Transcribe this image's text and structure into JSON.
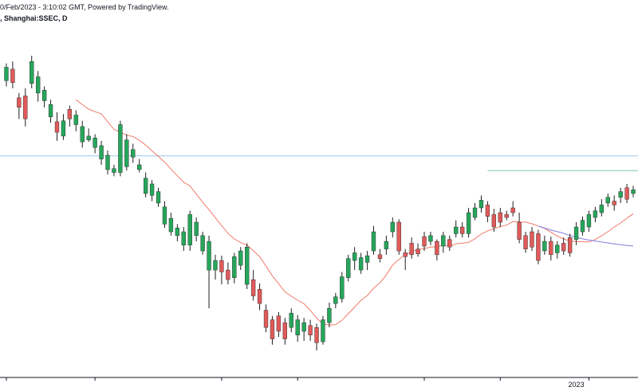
{
  "header": {
    "line1": "0/Feb/2023 - 3:10:02 GMT, Powered by TradingView.",
    "line2": ", Shanghai:SSEC, D"
  },
  "colors": {
    "up": "#26a65b",
    "down": "#e05a5a",
    "ma_short": "#f07a6a",
    "ma_long": "#7f7fe0",
    "hline_blue": "#9ec5e8",
    "hline_green": "#7cc7a0",
    "axis": "#131722"
  },
  "chart_data": {
    "type": "candlestick",
    "symbol": "Shanghai:SSEC",
    "interval": "D",
    "x_labels": [
      "2023"
    ],
    "candles": [
      {
        "o": 358,
        "c": 372,
        "h": 376,
        "l": 352
      },
      {
        "o": 370,
        "c": 356,
        "h": 378,
        "l": 350
      },
      {
        "o": 340,
        "c": 330,
        "h": 345,
        "l": 318
      },
      {
        "o": 342,
        "c": 318,
        "h": 350,
        "l": 310
      },
      {
        "o": 355,
        "c": 378,
        "h": 384,
        "l": 350
      },
      {
        "o": 345,
        "c": 362,
        "h": 368,
        "l": 336
      },
      {
        "o": 337,
        "c": 348,
        "h": 352,
        "l": 330
      },
      {
        "o": 320,
        "c": 333,
        "h": 338,
        "l": 314
      },
      {
        "o": 315,
        "c": 304,
        "h": 325,
        "l": 295
      },
      {
        "o": 300,
        "c": 316,
        "h": 323,
        "l": 296
      },
      {
        "o": 328,
        "c": 318,
        "h": 332,
        "l": 310
      },
      {
        "o": 312,
        "c": 322,
        "h": 327,
        "l": 305
      },
      {
        "o": 294,
        "c": 310,
        "h": 316,
        "l": 288
      },
      {
        "o": 296,
        "c": 300,
        "h": 308,
        "l": 294
      },
      {
        "o": 288,
        "c": 298,
        "h": 302,
        "l": 282
      },
      {
        "o": 276,
        "c": 290,
        "h": 295,
        "l": 270
      },
      {
        "o": 265,
        "c": 280,
        "h": 285,
        "l": 260
      },
      {
        "o": 262,
        "c": 266,
        "h": 270,
        "l": 258
      },
      {
        "o": 262,
        "c": 312,
        "h": 316,
        "l": 258
      },
      {
        "o": 268,
        "c": 296,
        "h": 302,
        "l": 264
      },
      {
        "o": 278,
        "c": 286,
        "h": 292,
        "l": 272
      },
      {
        "o": 265,
        "c": 270,
        "h": 276,
        "l": 262
      },
      {
        "o": 240,
        "c": 256,
        "h": 262,
        "l": 236
      },
      {
        "o": 238,
        "c": 250,
        "h": 254,
        "l": 232
      },
      {
        "o": 230,
        "c": 242,
        "h": 246,
        "l": 226
      },
      {
        "o": 208,
        "c": 226,
        "h": 232,
        "l": 204
      },
      {
        "o": 200,
        "c": 214,
        "h": 220,
        "l": 196
      },
      {
        "o": 196,
        "c": 204,
        "h": 208,
        "l": 190
      },
      {
        "o": 186,
        "c": 200,
        "h": 205,
        "l": 180
      },
      {
        "o": 186,
        "c": 218,
        "h": 222,
        "l": 180
      },
      {
        "o": 196,
        "c": 210,
        "h": 215,
        "l": 190
      },
      {
        "o": 180,
        "c": 196,
        "h": 200,
        "l": 176
      },
      {
        "o": 160,
        "c": 190,
        "h": 196,
        "l": 120
      },
      {
        "o": 160,
        "c": 170,
        "h": 176,
        "l": 150
      },
      {
        "o": 170,
        "c": 158,
        "h": 175,
        "l": 145
      },
      {
        "o": 160,
        "c": 150,
        "h": 168,
        "l": 145
      },
      {
        "o": 152,
        "c": 174,
        "h": 178,
        "l": 146
      },
      {
        "o": 165,
        "c": 180,
        "h": 184,
        "l": 160
      },
      {
        "o": 145,
        "c": 184,
        "h": 188,
        "l": 140
      },
      {
        "o": 150,
        "c": 133,
        "h": 160,
        "l": 128
      },
      {
        "o": 140,
        "c": 125,
        "h": 146,
        "l": 118
      },
      {
        "o": 118,
        "c": 100,
        "h": 124,
        "l": 95
      },
      {
        "o": 108,
        "c": 88,
        "h": 112,
        "l": 82
      },
      {
        "o": 112,
        "c": 96,
        "h": 116,
        "l": 90
      },
      {
        "o": 105,
        "c": 88,
        "h": 110,
        "l": 82
      },
      {
        "o": 100,
        "c": 115,
        "h": 120,
        "l": 95
      },
      {
        "o": 92,
        "c": 108,
        "h": 113,
        "l": 85
      },
      {
        "o": 96,
        "c": 105,
        "h": 110,
        "l": 86
      },
      {
        "o": 102,
        "c": 92,
        "h": 108,
        "l": 86
      },
      {
        "o": 100,
        "c": 84,
        "h": 104,
        "l": 76
      },
      {
        "o": 85,
        "c": 108,
        "h": 112,
        "l": 82
      },
      {
        "o": 105,
        "c": 120,
        "h": 126,
        "l": 100
      },
      {
        "o": 125,
        "c": 132,
        "h": 136,
        "l": 120
      },
      {
        "o": 130,
        "c": 153,
        "h": 158,
        "l": 126
      },
      {
        "o": 152,
        "c": 172,
        "h": 176,
        "l": 148
      },
      {
        "o": 170,
        "c": 178,
        "h": 184,
        "l": 160
      },
      {
        "o": 160,
        "c": 173,
        "h": 178,
        "l": 156
      },
      {
        "o": 168,
        "c": 175,
        "h": 180,
        "l": 160
      },
      {
        "o": 180,
        "c": 200,
        "h": 206,
        "l": 176
      },
      {
        "o": 176,
        "c": 172,
        "h": 182,
        "l": 168
      },
      {
        "o": 182,
        "c": 190,
        "h": 196,
        "l": 176
      },
      {
        "o": 200,
        "c": 210,
        "h": 215,
        "l": 194
      },
      {
        "o": 210,
        "c": 180,
        "h": 213,
        "l": 176
      },
      {
        "o": 178,
        "c": 174,
        "h": 182,
        "l": 160
      },
      {
        "o": 188,
        "c": 176,
        "h": 194,
        "l": 172
      },
      {
        "o": 182,
        "c": 177,
        "h": 188,
        "l": 174
      },
      {
        "o": 195,
        "c": 185,
        "h": 200,
        "l": 180
      },
      {
        "o": 190,
        "c": 196,
        "h": 200,
        "l": 186
      },
      {
        "o": 190,
        "c": 176,
        "h": 192,
        "l": 170
      },
      {
        "o": 185,
        "c": 196,
        "h": 200,
        "l": 178
      },
      {
        "o": 192,
        "c": 184,
        "h": 196,
        "l": 180
      },
      {
        "o": 198,
        "c": 205,
        "h": 212,
        "l": 194
      },
      {
        "o": 205,
        "c": 198,
        "h": 210,
        "l": 194
      },
      {
        "o": 198,
        "c": 220,
        "h": 225,
        "l": 194
      },
      {
        "o": 215,
        "c": 225,
        "h": 230,
        "l": 212
      },
      {
        "o": 225,
        "c": 233,
        "h": 238,
        "l": 220
      },
      {
        "o": 228,
        "c": 216,
        "h": 232,
        "l": 210
      },
      {
        "o": 218,
        "c": 205,
        "h": 224,
        "l": 200
      },
      {
        "o": 220,
        "c": 210,
        "h": 225,
        "l": 205
      },
      {
        "o": 218,
        "c": 215,
        "h": 222,
        "l": 212
      },
      {
        "o": 225,
        "c": 220,
        "h": 232,
        "l": 216
      },
      {
        "o": 210,
        "c": 192,
        "h": 220,
        "l": 188
      },
      {
        "o": 196,
        "c": 182,
        "h": 200,
        "l": 178
      },
      {
        "o": 200,
        "c": 184,
        "h": 205,
        "l": 180
      },
      {
        "o": 198,
        "c": 170,
        "h": 202,
        "l": 166
      },
      {
        "o": 180,
        "c": 190,
        "h": 196,
        "l": 176
      },
      {
        "o": 190,
        "c": 176,
        "h": 195,
        "l": 170
      },
      {
        "o": 178,
        "c": 186,
        "h": 190,
        "l": 172
      },
      {
        "o": 188,
        "c": 180,
        "h": 194,
        "l": 176
      },
      {
        "o": 194,
        "c": 178,
        "h": 198,
        "l": 174
      },
      {
        "o": 192,
        "c": 205,
        "h": 210,
        "l": 186
      },
      {
        "o": 200,
        "c": 212,
        "h": 216,
        "l": 196
      },
      {
        "o": 205,
        "c": 218,
        "h": 222,
        "l": 200
      },
      {
        "o": 215,
        "c": 222,
        "h": 226,
        "l": 210
      },
      {
        "o": 220,
        "c": 228,
        "h": 234,
        "l": 216
      },
      {
        "o": 230,
        "c": 236,
        "h": 240,
        "l": 226
      },
      {
        "o": 232,
        "c": 228,
        "h": 238,
        "l": 222
      },
      {
        "o": 236,
        "c": 242,
        "h": 246,
        "l": 230
      },
      {
        "o": 246,
        "c": 234,
        "h": 250,
        "l": 230
      },
      {
        "o": 240,
        "c": 244,
        "h": 248,
        "l": 236
      }
    ]
  }
}
